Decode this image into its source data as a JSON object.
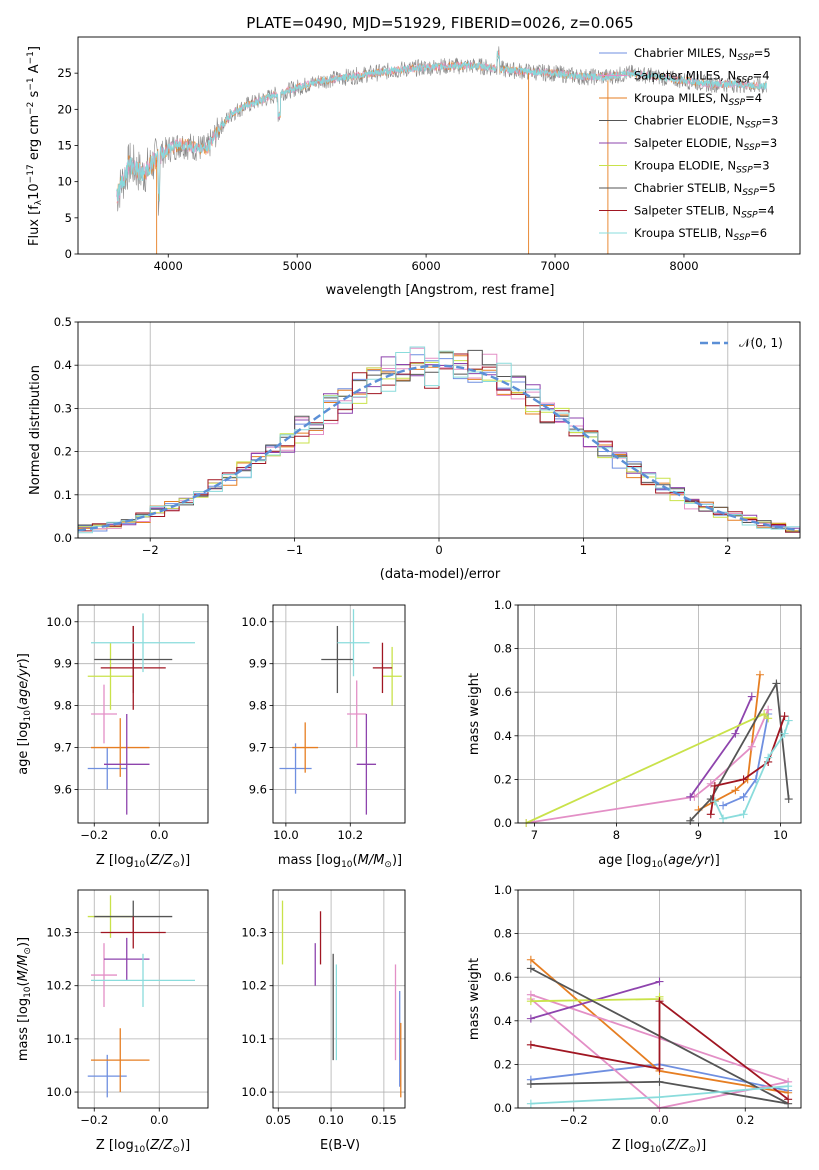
{
  "title": "PLATE=0490, MJD=51929, FIBERID=0026, z=0.065",
  "colors": {
    "c0": "#6f8fe0",
    "c1": "#e67e22",
    "c2": "#e38fc6",
    "c3": "#8e44ad",
    "c4": "#c9e24a",
    "c5": "#555555",
    "c6": "#a01622",
    "c7": "#8adcdc",
    "norm": "#5b8fd6",
    "spec": "#888888",
    "specfit": "#88d8dc"
  },
  "chart_data": [
    {
      "type": "line",
      "panel": "spectrum",
      "xlabel": "wavelength [Angstrom, rest frame]",
      "ylabel": "Flux [f_λ10^-17 erg cm^-2 s^-1 A^-1]",
      "xlim": [
        3300,
        8900
      ],
      "ylim": [
        0,
        30
      ],
      "xticks": [
        "4000",
        "5000",
        "6000",
        "7000",
        "8000"
      ],
      "yticks": [
        "0",
        "5",
        "10",
        "15",
        "20",
        "25"
      ],
      "continuum": {
        "x": [
          3600,
          3700,
          3800,
          3900,
          4000,
          4100,
          4200,
          4300,
          4400,
          4500,
          4600,
          4800,
          5000,
          5200,
          5400,
          5600,
          5800,
          6000,
          6200,
          6400,
          6600,
          6800,
          7000,
          7200,
          7400,
          7600,
          7800,
          8000,
          8200,
          8400,
          8600
        ],
        "y": [
          8,
          12.5,
          11,
          13,
          14.5,
          15.2,
          14.8,
          14.5,
          17.5,
          19.5,
          20.5,
          21.8,
          23,
          24,
          24.5,
          25,
          25.5,
          25.8,
          26,
          26,
          25.5,
          25.2,
          25,
          24.5,
          24.5,
          25,
          24.5,
          24,
          23.5,
          23.5,
          23.2
        ]
      },
      "legend": [
        {
          "label": "Chabrier MILES, N_SSP=5",
          "color": "c0"
        },
        {
          "label": "Salpeter MILES, N_SSP=4",
          "color": "c2"
        },
        {
          "label": "Kroupa MILES, N_SSP=4",
          "color": "c1"
        },
        {
          "label": "Chabrier ELODIE, N_SSP=3",
          "color": "c5"
        },
        {
          "label": "Salpeter ELODIE, N_SSP=3",
          "color": "c3"
        },
        {
          "label": "Kroupa ELODIE, N_SSP=3",
          "color": "c4"
        },
        {
          "label": "Chabrier STELIB, N_SSP=5",
          "color": "c5"
        },
        {
          "label": "Salpeter STELIB, N_SSP=4",
          "color": "c6"
        },
        {
          "label": "Kroupa STELIB, N_SSP=6",
          "color": "c7"
        }
      ]
    },
    {
      "type": "line",
      "panel": "residuals",
      "xlabel": "(data-model)/error",
      "ylabel": "Normed distribution",
      "xlim": [
        -2.5,
        2.5
      ],
      "ylim": [
        0,
        0.5
      ],
      "xticks": [
        "−2",
        "−1",
        "0",
        "1",
        "2"
      ],
      "yticks": [
        "0.0",
        "0.1",
        "0.2",
        "0.3",
        "0.4",
        "0.5"
      ],
      "legend": "N(0,1)",
      "grid": true
    },
    {
      "type": "scatter",
      "panel": "age-vs-Z",
      "xlabel": "Z [log10(Z/Z⊙)]",
      "ylabel": "age [log10(age/yr)]",
      "xlim": [
        -0.25,
        0.15
      ],
      "ylim": [
        9.52,
        10.04
      ],
      "xticks": [
        "−0.2",
        "0.0"
      ],
      "yticks": [
        "9.6",
        "9.7",
        "9.8",
        "9.9",
        "10.0"
      ],
      "points": [
        {
          "color": "c0",
          "x": -0.16,
          "xerr": 0.06,
          "y": 9.65,
          "yerr": 0.05
        },
        {
          "color": "c1",
          "x": -0.12,
          "xerr": 0.09,
          "y": 9.7,
          "yerr": 0.07
        },
        {
          "color": "c2",
          "x": -0.17,
          "xerr": 0.04,
          "y": 9.78,
          "yerr": 0.07
        },
        {
          "color": "c3",
          "x": -0.1,
          "xerr": 0.07,
          "y": 9.66,
          "yerr": 0.12
        },
        {
          "color": "c4",
          "x": -0.15,
          "xerr": 0.07,
          "y": 9.87,
          "yerr": 0.08
        },
        {
          "color": "c5",
          "x": -0.08,
          "xerr": 0.12,
          "y": 9.91,
          "yerr": 0.08
        },
        {
          "color": "c6",
          "x": -0.08,
          "xerr": 0.1,
          "y": 9.89,
          "yerr": 0.1
        },
        {
          "color": "c7",
          "x": -0.05,
          "xerr": 0.16,
          "y": 9.95,
          "yerr": 0.07
        }
      ]
    },
    {
      "type": "scatter",
      "panel": "age-vs-mass",
      "xlabel": "mass [log10(M/M⊙)]",
      "xlim": [
        9.96,
        10.37
      ],
      "ylim": [
        9.52,
        10.04
      ],
      "xticks": [
        "10.0",
        "10.2"
      ],
      "yticks": [
        "9.6",
        "9.7",
        "9.8",
        "9.9",
        "10.0"
      ],
      "points": [
        {
          "color": "c0",
          "x": 10.03,
          "xerr": 0.05,
          "y": 9.65,
          "yerr": 0.06
        },
        {
          "color": "c1",
          "x": 10.06,
          "xerr": 0.04,
          "y": 9.7,
          "yerr": 0.06
        },
        {
          "color": "c2",
          "x": 10.22,
          "xerr": 0.03,
          "y": 9.78,
          "yerr": 0.08
        },
        {
          "color": "c3",
          "x": 10.25,
          "xerr": 0.03,
          "y": 9.66,
          "yerr": 0.12
        },
        {
          "color": "c4",
          "x": 10.33,
          "xerr": 0.03,
          "y": 9.87,
          "yerr": 0.07
        },
        {
          "color": "c5",
          "x": 10.16,
          "xerr": 0.05,
          "y": 9.91,
          "yerr": 0.08
        },
        {
          "color": "c6",
          "x": 10.3,
          "xerr": 0.03,
          "y": 9.89,
          "yerr": 0.06
        },
        {
          "color": "c7",
          "x": 10.21,
          "xerr": 0.05,
          "y": 9.95,
          "yerr": 0.08
        }
      ]
    },
    {
      "type": "line",
      "panel": "weight-vs-age",
      "xlabel": "age [log10(age/yr)]",
      "ylabel": "mass weight",
      "xlim": [
        6.8,
        10.25
      ],
      "ylim": [
        0,
        1
      ],
      "xticks": [
        "7",
        "8",
        "9",
        "10"
      ],
      "yticks": [
        "0.0",
        "0.2",
        "0.4",
        "0.6",
        "0.8",
        "1.0"
      ],
      "series": [
        {
          "color": "c0",
          "x": [
            9.3,
            9.55,
            9.7,
            9.85
          ],
          "y": [
            0.08,
            0.12,
            0.2,
            0.5
          ]
        },
        {
          "color": "c1",
          "x": [
            9.0,
            9.2,
            9.45,
            9.6,
            9.75
          ],
          "y": [
            0.06,
            0.1,
            0.15,
            0.2,
            0.68
          ]
        },
        {
          "color": "c2",
          "x": [
            6.9,
            8.95,
            9.15,
            9.65,
            9.85
          ],
          "y": [
            0.0,
            0.12,
            0.18,
            0.35,
            0.52
          ]
        },
        {
          "color": "c3",
          "x": [
            8.9,
            9.45,
            9.65
          ],
          "y": [
            0.12,
            0.41,
            0.58
          ]
        },
        {
          "color": "c4",
          "x": [
            6.9,
            9.8,
            9.85
          ],
          "y": [
            0.0,
            0.5,
            0.48
          ]
        },
        {
          "color": "c5",
          "x": [
            8.9,
            9.15,
            9.95,
            10.1
          ],
          "y": [
            0.01,
            0.11,
            0.64,
            0.11
          ]
        },
        {
          "color": "c6",
          "x": [
            9.15,
            9.2,
            9.55,
            9.85,
            10.05
          ],
          "y": [
            0.04,
            0.17,
            0.2,
            0.28,
            0.49
          ]
        },
        {
          "color": "c7",
          "x": [
            9.2,
            9.3,
            9.55,
            9.85,
            10.05,
            10.1
          ],
          "y": [
            0.1,
            0.02,
            0.04,
            0.3,
            0.41,
            0.47
          ]
        }
      ]
    },
    {
      "type": "scatter",
      "panel": "mass-vs-Z",
      "xlabel": "Z [log10(Z/Z⊙)]",
      "ylabel": "mass [log10(M/M⊙)]",
      "xlim": [
        -0.25,
        0.15
      ],
      "ylim": [
        9.97,
        10.38
      ],
      "xticks": [
        "−0.2",
        "0.0"
      ],
      "yticks": [
        "10.0",
        "10.1",
        "10.2",
        "10.3"
      ],
      "points": [
        {
          "color": "c0",
          "x": -0.16,
          "xerr": 0.06,
          "y": 10.03,
          "yerr": 0.04
        },
        {
          "color": "c1",
          "x": -0.12,
          "xerr": 0.09,
          "y": 10.06,
          "yerr": 0.06
        },
        {
          "color": "c2",
          "x": -0.17,
          "xerr": 0.04,
          "y": 10.22,
          "yerr": 0.06
        },
        {
          "color": "c3",
          "x": -0.1,
          "xerr": 0.07,
          "y": 10.25,
          "yerr": 0.04
        },
        {
          "color": "c4",
          "x": -0.15,
          "xerr": 0.07,
          "y": 10.33,
          "yerr": 0.04
        },
        {
          "color": "c5",
          "x": -0.08,
          "xerr": 0.12,
          "y": 10.33,
          "yerr": 0.03
        },
        {
          "color": "c6",
          "x": -0.08,
          "xerr": 0.1,
          "y": 10.3,
          "yerr": 0.03
        },
        {
          "color": "c7",
          "x": -0.05,
          "xerr": 0.16,
          "y": 10.21,
          "yerr": 0.05
        }
      ]
    },
    {
      "type": "scatter",
      "panel": "mass-vs-EBV",
      "xlabel": "E(B-V)",
      "xlim": [
        0.045,
        0.17
      ],
      "ylim": [
        9.97,
        10.38
      ],
      "xticks": [
        "0.05",
        "0.10",
        "0.15"
      ],
      "yticks": [
        "10.0",
        "10.1",
        "10.2",
        "10.3"
      ],
      "points": [
        {
          "color": "c0",
          "x": 0.165,
          "y": 10.1,
          "yerr": 0.09
        },
        {
          "color": "c1",
          "x": 0.166,
          "y": 10.06,
          "yerr": 0.07
        },
        {
          "color": "c2",
          "x": 0.161,
          "y": 10.15,
          "yerr": 0.09
        },
        {
          "color": "c3",
          "x": 0.085,
          "y": 10.24,
          "yerr": 0.04
        },
        {
          "color": "c4",
          "x": 0.054,
          "y": 10.3,
          "yerr": 0.06
        },
        {
          "color": "c5",
          "x": 0.102,
          "y": 10.16,
          "yerr": 0.1
        },
        {
          "color": "c6",
          "x": 0.09,
          "y": 10.29,
          "yerr": 0.05
        },
        {
          "color": "c7",
          "x": 0.105,
          "y": 10.15,
          "yerr": 0.09
        }
      ]
    },
    {
      "type": "line",
      "panel": "weight-vs-Z",
      "xlabel": "Z [log10(Z/Z⊙)]",
      "ylabel": "mass weight",
      "xlim": [
        -0.33,
        0.33
      ],
      "ylim": [
        0,
        1
      ],
      "xticks": [
        "−0.2",
        "0.0",
        "0.2"
      ],
      "yticks": [
        "0.0",
        "0.2",
        "0.4",
        "0.6",
        "0.8",
        "1.0"
      ],
      "series": [
        {
          "color": "c0",
          "x": [
            -0.3,
            0.0,
            0.3
          ],
          "y": [
            0.13,
            0.2,
            0.08
          ]
        },
        {
          "color": "c1",
          "x": [
            -0.3,
            0.0,
            0.3
          ],
          "y": [
            0.68,
            0.17,
            0.07
          ]
        },
        {
          "color": "c2",
          "x": [
            -0.3,
            0.0,
            0.3,
            -0.3
          ],
          "y": [
            0.5,
            0.0,
            0.12,
            0.52
          ]
        },
        {
          "color": "c3",
          "x": [
            -0.3,
            0.0
          ],
          "y": [
            0.41,
            0.58
          ]
        },
        {
          "color": "c4",
          "x": [
            -0.3,
            0.0,
            0.0
          ],
          "y": [
            0.49,
            0.5,
            0.51
          ]
        },
        {
          "color": "c5",
          "x": [
            -0.3,
            0.0,
            0.3,
            -0.3
          ],
          "y": [
            0.11,
            0.12,
            0.02,
            0.64
          ]
        },
        {
          "color": "c6",
          "x": [
            -0.3,
            0.0,
            0.0,
            0.3
          ],
          "y": [
            0.29,
            0.18,
            0.49,
            0.04
          ]
        },
        {
          "color": "c7",
          "x": [
            -0.3,
            0.0,
            0.3
          ],
          "y": [
            0.02,
            0.05,
            0.1
          ]
        }
      ]
    }
  ]
}
